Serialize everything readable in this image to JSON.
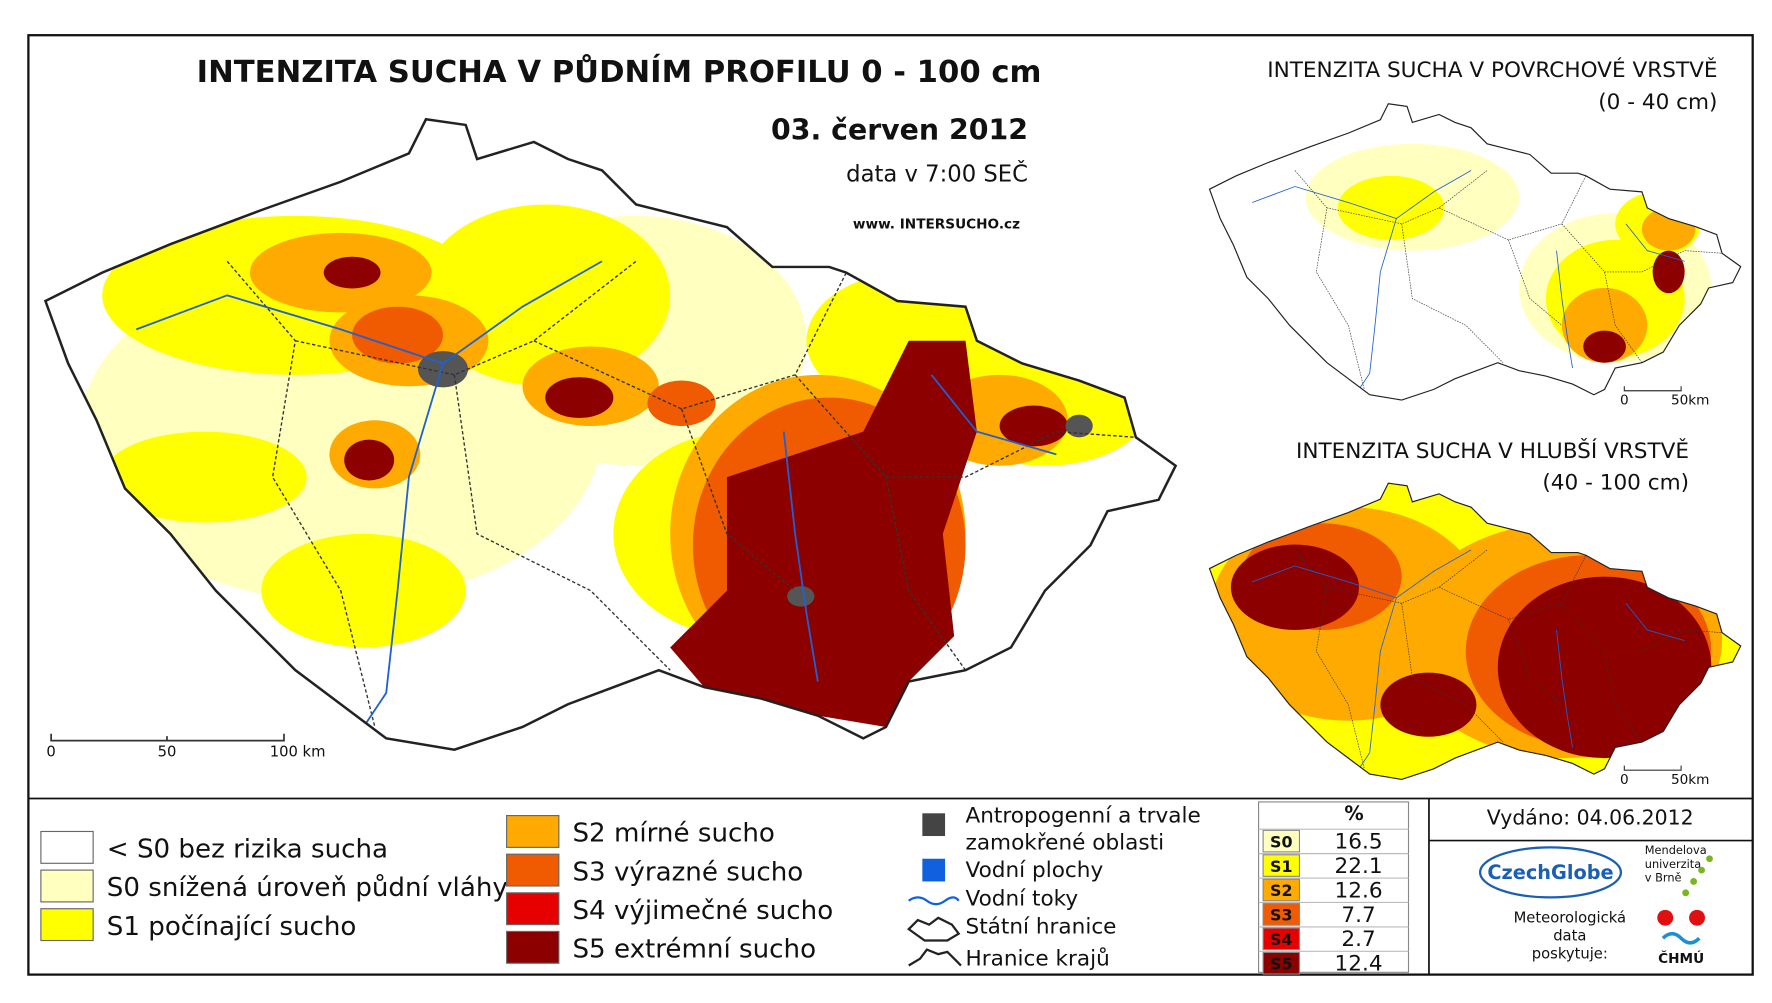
{
  "main_map": {
    "title": "INTENZITA SUCHA V PŮDNÍM PROFILU 0 - 100 cm",
    "date": "03. červen 2012",
    "data_time": "data v 7:00 SEČ",
    "website": "www. INTERSUCHO.cz",
    "scale": [
      "0",
      "50",
      "100 km"
    ]
  },
  "inset_surface": {
    "title": "INTENZITA SUCHA V POVRCHOVÉ VRSTVĚ",
    "depth": "(0 - 40 cm)",
    "scale": [
      "0",
      "50km"
    ]
  },
  "inset_deep": {
    "title": "INTENZITA SUCHA V HLUBŠÍ VRSTVĚ",
    "depth": "(40 - 100 cm)",
    "scale": [
      "0",
      "50km"
    ]
  },
  "legend": {
    "drought_classes": [
      {
        "label": "< S0 bez rizika sucha",
        "color": "#ffffff"
      },
      {
        "label": "S0 snížená úroveň půdní vláhy",
        "color": "#ffffc0"
      },
      {
        "label": "S1 počínající sucho",
        "color": "#ffff00"
      },
      {
        "label": "S2 mírné sucho",
        "color": "#ffaa00"
      },
      {
        "label": "S3 výrazné sucho",
        "color": "#f05a00"
      },
      {
        "label": "S4 výjimečné sucho",
        "color": "#e60000"
      },
      {
        "label": "S5 extrémní sucho",
        "color": "#8c0000"
      }
    ],
    "other": {
      "anthropogenic": [
        "Antropogenní a trvale",
        "zamokřené oblasti"
      ],
      "water_areas": "Vodní plochy",
      "rivers": "Vodní toky",
      "state_border": "Státní hranice",
      "region_border": "Hranice krajů"
    }
  },
  "stats_table": {
    "header": "%",
    "rows": [
      {
        "class": "S0",
        "color": "#ffffc0",
        "percent": 16.5
      },
      {
        "class": "S1",
        "color": "#ffff00",
        "percent": 22.1
      },
      {
        "class": "S2",
        "color": "#ffaa00",
        "percent": 12.6
      },
      {
        "class": "S3",
        "color": "#f05a00",
        "percent": 7.7
      },
      {
        "class": "S4",
        "color": "#e60000",
        "percent": 2.7
      },
      {
        "class": "S5",
        "color": "#8c0000",
        "percent": 12.4
      }
    ]
  },
  "issued": "Vydáno: 04.06.2012",
  "logos": {
    "czechglobe": "CzechGlobe",
    "mendel": [
      "Mendelova",
      "univerzita",
      "v Brně"
    ],
    "provider": [
      "Meteorologická",
      "data",
      "poskytuje:"
    ],
    "chmu": "ČHMÚ"
  }
}
